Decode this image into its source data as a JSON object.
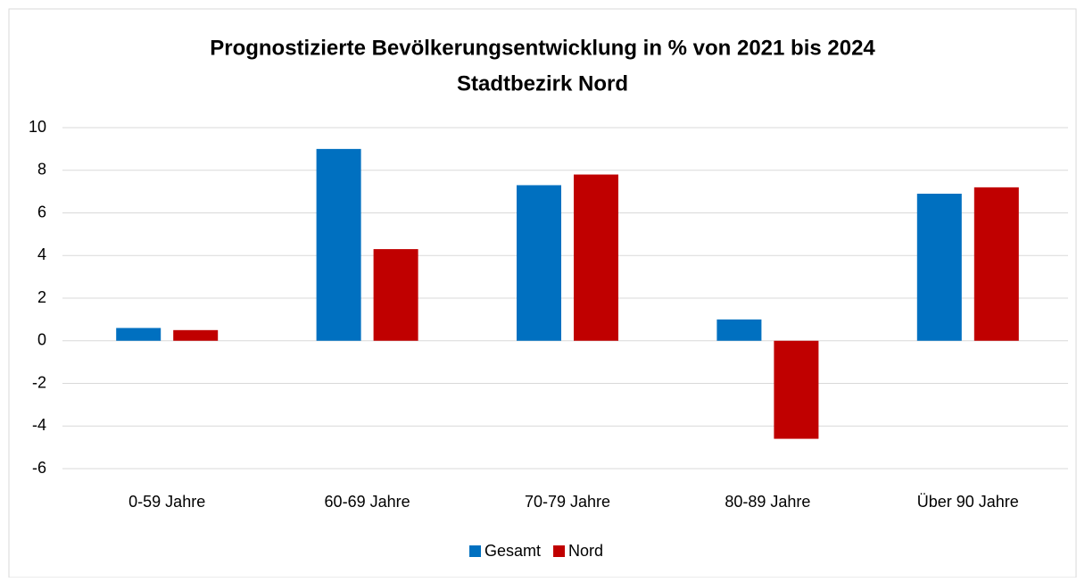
{
  "chart_data": {
    "type": "bar",
    "title": [
      "Prognostizierte Bevölkerungsentwicklung in % von 2021 bis 2024",
      "Stadtbezirk Nord"
    ],
    "categories": [
      "0-59 Jahre",
      "60-69 Jahre",
      "70-79 Jahre",
      "80-89 Jahre",
      "Über 90 Jahre"
    ],
    "series": [
      {
        "name": "Gesamt",
        "color": "#0070c0",
        "values": [
          0.6,
          9.0,
          7.3,
          1.0,
          6.9
        ]
      },
      {
        "name": "Nord",
        "color": "#c00000",
        "values": [
          0.5,
          4.3,
          7.8,
          -4.6,
          7.2
        ]
      }
    ],
    "ylim": [
      -6,
      10
    ],
    "yticks": [
      -6,
      -4,
      -2,
      0,
      2,
      4,
      6,
      8,
      10
    ],
    "grid": true,
    "legend": "bottom"
  }
}
